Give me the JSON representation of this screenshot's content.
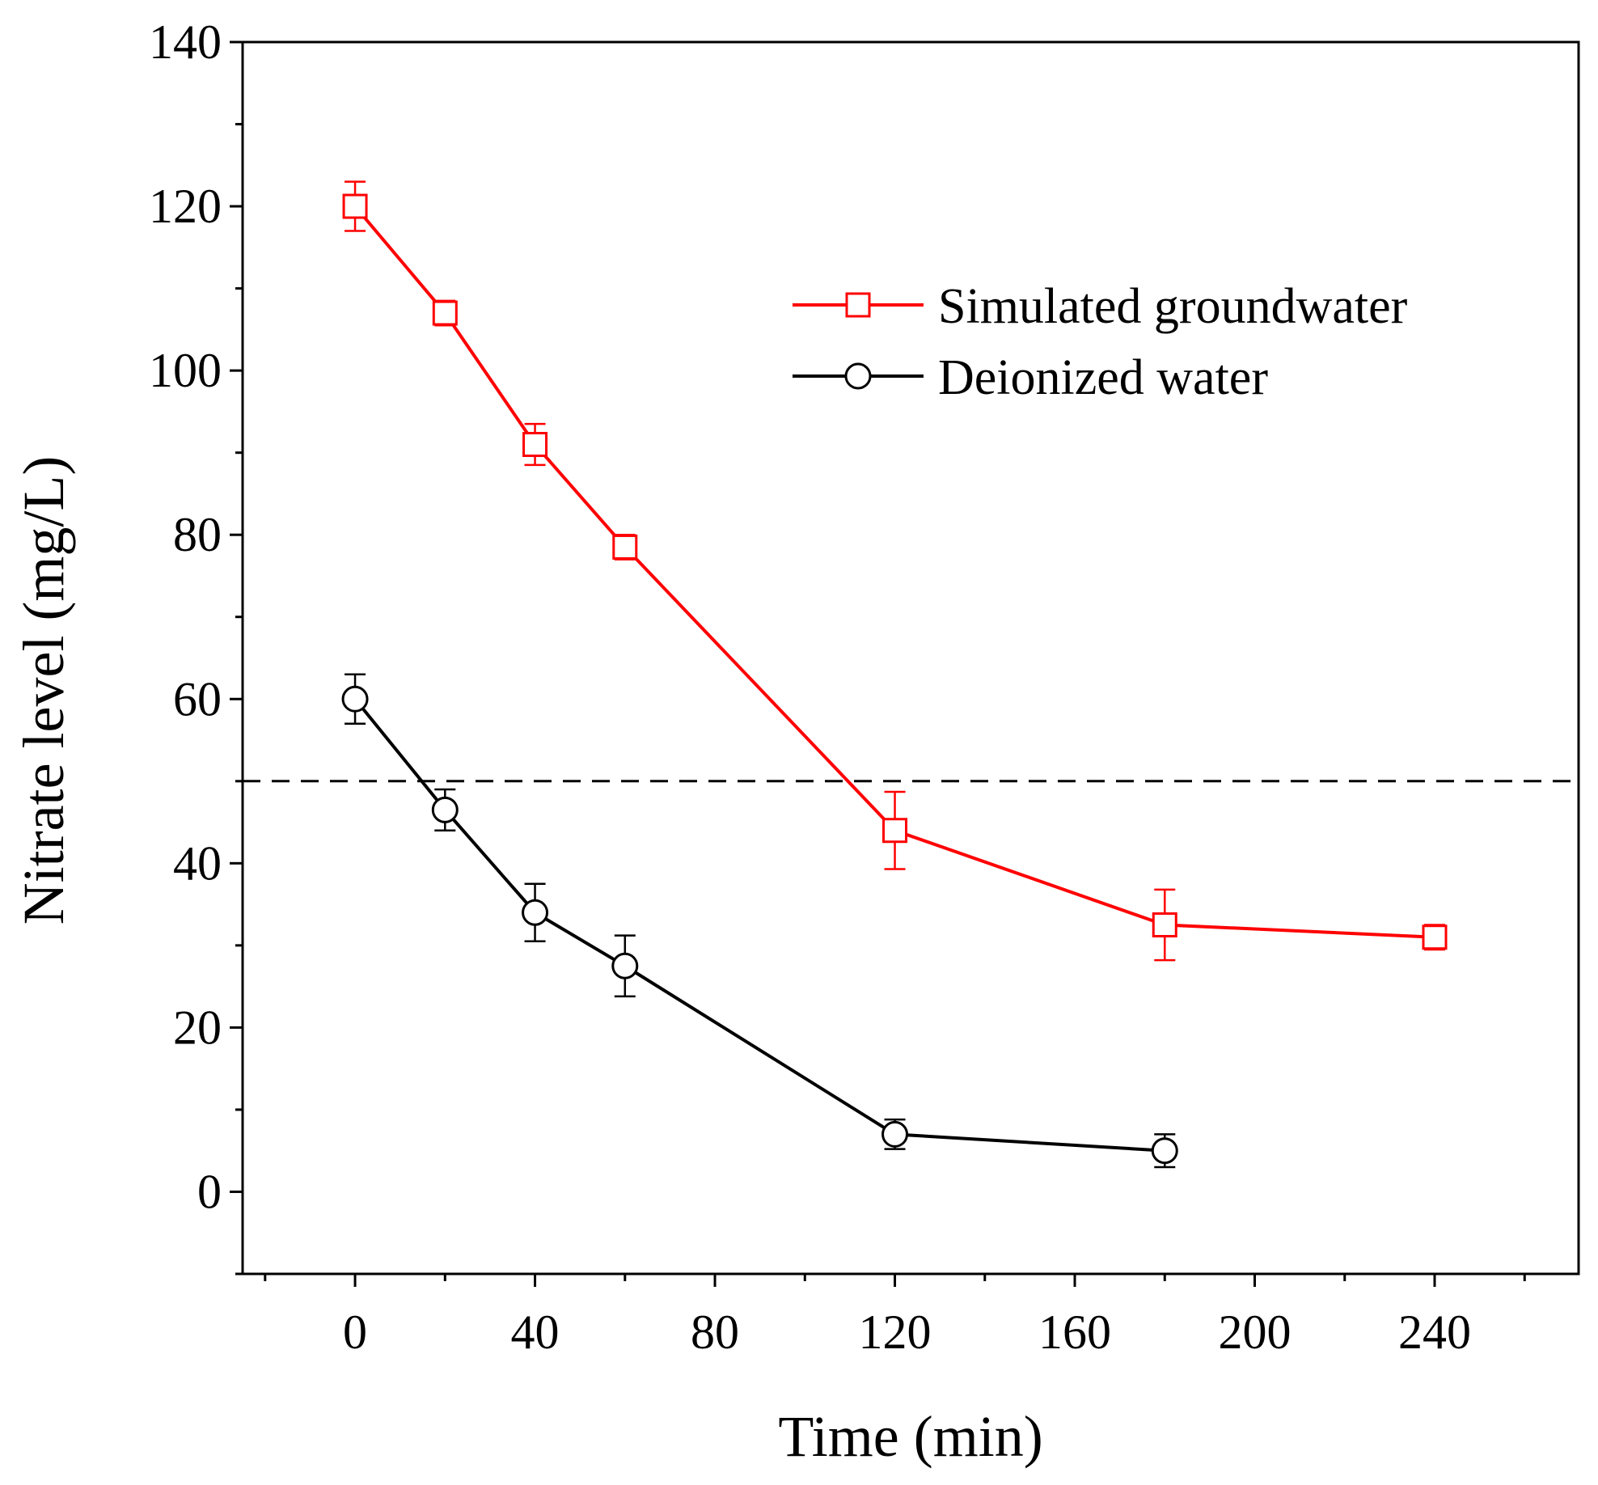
{
  "chart_data": {
    "type": "line",
    "title": "",
    "xlabel": "Time (min)",
    "ylabel": "Nitrate level (mg/L)",
    "xlim": [
      -25,
      272
    ],
    "ylim": [
      -10,
      140
    ],
    "x_ticks": [
      0,
      40,
      80,
      120,
      160,
      200,
      240
    ],
    "x_tick_labels": [
      "0",
      "40",
      "80",
      "120",
      "160",
      "200",
      "240"
    ],
    "x_minor_ticks": [
      -20,
      20,
      60,
      100,
      140,
      180,
      220,
      260
    ],
    "y_ticks": [
      0,
      20,
      40,
      60,
      80,
      100,
      120,
      140
    ],
    "y_tick_labels": [
      "0",
      "20",
      "40",
      "60",
      "80",
      "100",
      "120",
      "140"
    ],
    "y_minor_ticks": [
      -10,
      10,
      30,
      50,
      70,
      90,
      110,
      130
    ],
    "grid": false,
    "legend_position": "top-right",
    "reference_line": {
      "y": 50,
      "style": "dashed",
      "color": "#000000"
    },
    "series": [
      {
        "name": "Simulated groundwater",
        "color": "#ff0000",
        "marker": "square",
        "x": [
          0,
          20,
          40,
          60,
          120,
          180,
          240
        ],
        "y": [
          120,
          107,
          91,
          78.5,
          44,
          32.5,
          31
        ],
        "error": [
          3,
          1.5,
          2.5,
          1.5,
          4.7,
          4.3,
          1.5
        ]
      },
      {
        "name": "Deionized water",
        "color": "#000000",
        "marker": "circle",
        "x": [
          0,
          20,
          40,
          60,
          120,
          180
        ],
        "y": [
          60,
          46.5,
          34,
          27.5,
          7,
          5
        ],
        "error": [
          3,
          2.5,
          3.5,
          3.7,
          1.8,
          2
        ]
      }
    ]
  }
}
